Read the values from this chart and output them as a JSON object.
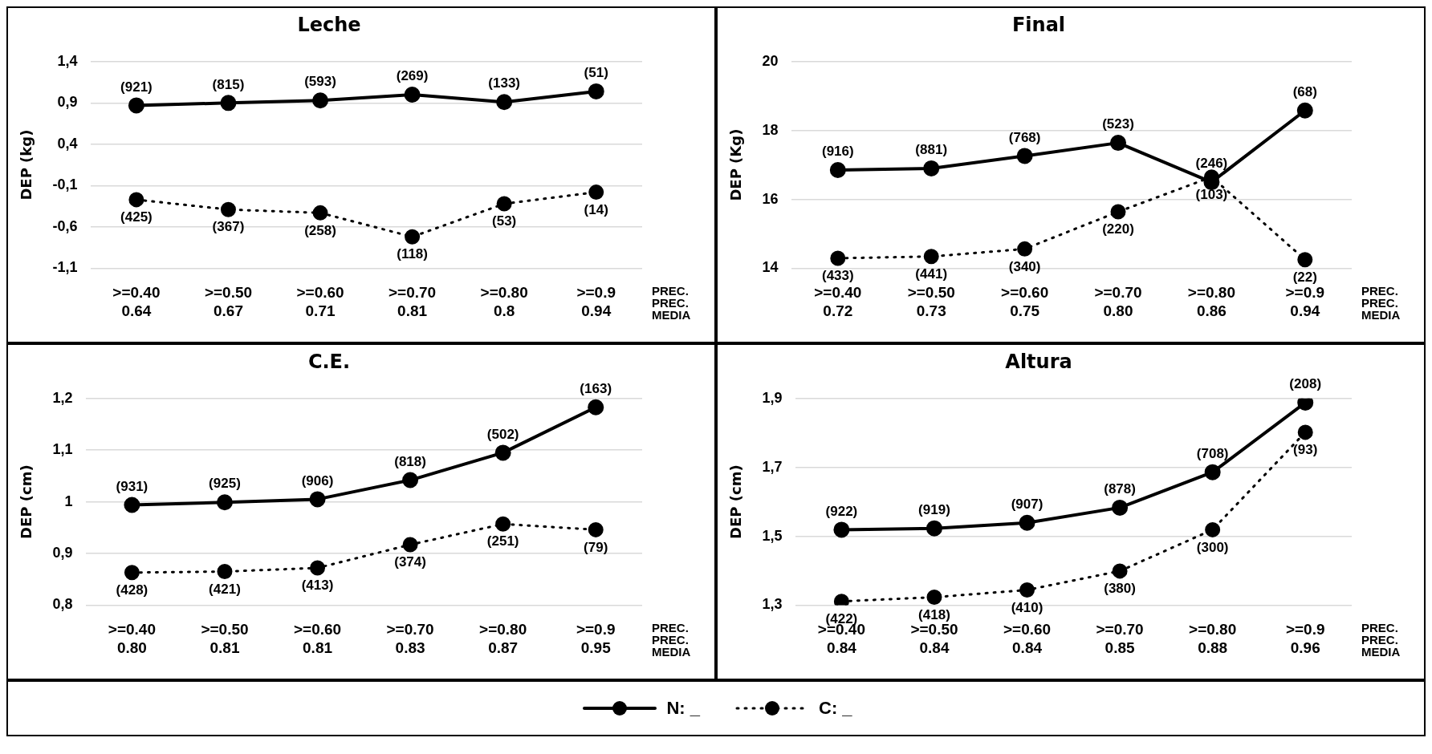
{
  "chart_data": [
    {
      "type": "line",
      "title": "Leche",
      "ylabel": "DEP (kg)",
      "categories": [
        ">=0.40\n0.64",
        ">=0.50\n0.67",
        ">=0.60\n0.71",
        ">=0.70\n0.81",
        ">=0.80\n0.8",
        ">=0.9\n0.94"
      ],
      "series": [
        {
          "name": "N: _",
          "color": "#000000",
          "line_style": "solid",
          "values": [
            0.87,
            0.9,
            0.93,
            1.0,
            0.91,
            1.04
          ]
        },
        {
          "name": "C: _",
          "color": "#000000",
          "line_style": "dotted",
          "values": [
            -0.27,
            -0.39,
            -0.43,
            -0.72,
            -0.32,
            -0.18
          ]
        }
      ],
      "ylim": [
        -1.1,
        1.4
      ],
      "yticks": [
        {
          "value": -1.1,
          "label": "-1,1"
        },
        {
          "value": -0.6,
          "label": "-0,6"
        },
        {
          "value": -0.1,
          "label": "-0,1"
        },
        {
          "value": 0.4,
          "label": "0,4"
        },
        {
          "value": 0.9,
          "label": "0,9"
        },
        {
          "value": 1.4,
          "label": "1,4"
        }
      ],
      "grid": "y",
      "marker": "circle",
      "legend": "bottom",
      "annotations": [
        "PREC.\nPREC.\nMEDIA",
        {
          "text": "(921)",
          "x": ">=0.40\n0.64",
          "y": 0.87
        },
        {
          "text": "(815)",
          "x": ">=0.50\n0.67",
          "y": 0.9
        },
        {
          "text": "(593)",
          "x": ">=0.60\n0.71",
          "y": 0.93
        },
        {
          "text": "(269)",
          "x": ">=0.70\n0.81",
          "y": 1.0
        },
        {
          "text": "(133)",
          "x": ">=0.80\n0.8",
          "y": 0.91
        },
        {
          "text": "(51)",
          "x": ">=0.9\n0.94",
          "y": 1.04
        },
        {
          "text": "(425)",
          "x": ">=0.40\n0.64",
          "y": -0.27
        },
        {
          "text": "(367)",
          "x": ">=0.50\n0.67",
          "y": -0.39
        },
        {
          "text": "(258)",
          "x": ">=0.60\n0.71",
          "y": -0.43
        },
        {
          "text": "(118)",
          "x": ">=0.70\n0.81",
          "y": -0.72
        },
        {
          "text": "(53)",
          "x": ">=0.80\n0.8",
          "y": -0.32
        },
        {
          "text": "(14)",
          "x": ">=0.9\n0.94",
          "y": -0.18
        }
      ]
    },
    {
      "type": "line",
      "title": "Final",
      "ylabel": "DEP (Kg)",
      "categories": [
        ">=0.40\n0.72",
        ">=0.50\n0.73",
        ">=0.60\n0.75",
        ">=0.70\n0.80",
        ">=0.80\n0.86",
        ">=0.9\n0.94"
      ],
      "series": [
        {
          "name": "N: _",
          "color": "#000000",
          "line_style": "solid",
          "values": [
            16.85,
            16.9,
            17.26,
            17.64,
            16.5,
            18.58
          ]
        },
        {
          "name": "C: _",
          "color": "#000000",
          "line_style": "dotted",
          "values": [
            14.29,
            14.34,
            14.56,
            15.64,
            16.65,
            14.25
          ]
        }
      ],
      "ylim": [
        14,
        20
      ],
      "yticks": [
        14,
        16,
        18,
        20
      ],
      "grid": "y",
      "marker": "circle",
      "legend": "bottom",
      "annotations": [
        "PREC.\nPREC.\nMEDIA",
        {
          "text": "(916)",
          "x": ">=0.40\n0.72",
          "y": 16.85
        },
        {
          "text": "(881)",
          "x": ">=0.50\n0.73",
          "y": 16.9
        },
        {
          "text": "(768)",
          "x": ">=0.60\n0.75",
          "y": 17.26
        },
        {
          "text": "(523)",
          "x": ">=0.70\n0.80",
          "y": 17.64
        },
        {
          "text": "(246)",
          "x": ">=0.80\n0.86",
          "y": 16.5
        },
        {
          "text": "(68)",
          "x": ">=0.9\n0.94",
          "y": 18.58
        },
        {
          "text": "(433)",
          "x": ">=0.40\n0.72",
          "y": 14.29
        },
        {
          "text": "(441)",
          "x": ">=0.50\n0.73",
          "y": 14.34
        },
        {
          "text": "(340)",
          "x": ">=0.60\n0.75",
          "y": 14.56
        },
        {
          "text": "(220)",
          "x": ">=0.70\n0.80",
          "y": 15.64
        },
        {
          "text": "(103)",
          "x": ">=0.80\n0.86",
          "y": 16.65
        },
        {
          "text": "(22)",
          "x": ">=0.9\n0.94",
          "y": 14.25
        }
      ]
    },
    {
      "type": "line",
      "title": "C.E.",
      "ylabel": "DEP (cm)",
      "categories": [
        ">=0.40\n0.80",
        ">=0.50\n0.81",
        ">=0.60\n0.81",
        ">=0.70\n0.83",
        ">=0.80\n0.87",
        ">=0.9\n0.95"
      ],
      "series": [
        {
          "name": "N: _",
          "color": "#000000",
          "line_style": "solid",
          "values": [
            0.994,
            0.999,
            1.005,
            1.042,
            1.095,
            1.183
          ]
        },
        {
          "name": "C: _",
          "color": "#000000",
          "line_style": "dotted",
          "values": [
            0.863,
            0.865,
            0.872,
            0.917,
            0.957,
            0.946
          ]
        }
      ],
      "ylim": [
        0.8,
        1.2
      ],
      "yticks": [
        {
          "value": 0.8,
          "label": "0,8"
        },
        {
          "value": 0.9,
          "label": "0,9"
        },
        1,
        {
          "value": 1.1,
          "label": "1,1"
        },
        {
          "value": 1.2,
          "label": "1,2"
        }
      ],
      "grid": "y",
      "marker": "circle",
      "legend": "bottom",
      "annotations": [
        "PREC.\nPREC.\nMEDIA",
        {
          "text": "(931)",
          "x": ">=0.40\n0.80",
          "y": 0.994
        },
        {
          "text": "(925)",
          "x": ">=0.50\n0.81",
          "y": 0.999
        },
        {
          "text": "(906)",
          "x": ">=0.60\n0.81",
          "y": 1.005
        },
        {
          "text": "(818)",
          "x": ">=0.70\n0.83",
          "y": 1.042
        },
        {
          "text": "(502)",
          "x": ">=0.80\n0.87",
          "y": 1.095
        },
        {
          "text": "(163)",
          "x": ">=0.9\n0.95",
          "y": 1.183
        },
        {
          "text": "(428)",
          "x": ">=0.40\n0.80",
          "y": 0.863
        },
        {
          "text": "(421)",
          "x": ">=0.50\n0.81",
          "y": 0.865
        },
        {
          "text": "(413)",
          "x": ">=0.60\n0.81",
          "y": 0.872
        },
        {
          "text": "(374)",
          "x": ">=0.70\n0.83",
          "y": 0.917
        },
        {
          "text": "(251)",
          "x": ">=0.80\n0.87",
          "y": 0.957
        },
        {
          "text": "(79)",
          "x": ">=0.9\n0.95",
          "y": 0.946
        }
      ]
    },
    {
      "type": "line",
      "title": "Altura",
      "ylabel": "DEP (cm)",
      "categories": [
        ">=0.40\n0.84",
        ">=0.50\n0.84",
        ">=0.60\n0.84",
        ">=0.70\n0.85",
        ">=0.80\n0.88",
        ">=0.9\n0.96"
      ],
      "series": [
        {
          "name": "N: _",
          "color": "#000000",
          "line_style": "solid",
          "values": [
            1.519,
            1.523,
            1.539,
            1.583,
            1.686,
            1.888
          ]
        },
        {
          "name": "C: _",
          "color": "#000000",
          "line_style": "dotted",
          "values": [
            1.311,
            1.323,
            1.344,
            1.399,
            1.519,
            1.802
          ]
        }
      ],
      "ylim": [
        1.3,
        1.9
      ],
      "yticks": [
        {
          "value": 1.3,
          "label": "1,3"
        },
        {
          "value": 1.5,
          "label": "1,5"
        },
        {
          "value": 1.7,
          "label": "1,7"
        },
        {
          "value": 1.9,
          "label": "1,9"
        }
      ],
      "grid": "y",
      "marker": "circle",
      "legend": "bottom",
      "annotations": [
        "PREC.\nPREC.\nMEDIA",
        {
          "text": "(922)",
          "x": ">=0.40\n0.84",
          "y": 1.519
        },
        {
          "text": "(919)",
          "x": ">=0.50\n0.84",
          "y": 1.523
        },
        {
          "text": "(907)",
          "x": ">=0.60\n0.84",
          "y": 1.539
        },
        {
          "text": "(878)",
          "x": ">=0.70\n0.85",
          "y": 1.583
        },
        {
          "text": "(708)",
          "x": ">=0.80\n0.88",
          "y": 1.686
        },
        {
          "text": "(208)",
          "x": ">=0.9\n0.96",
          "y": 1.888
        },
        {
          "text": "(422)",
          "x": ">=0.40\n0.84",
          "y": 1.311
        },
        {
          "text": "(418)",
          "x": ">=0.50\n0.84",
          "y": 1.323
        },
        {
          "text": "(410)",
          "x": ">=0.60\n0.84",
          "y": 1.344
        },
        {
          "text": "(380)",
          "x": ">=0.70\n0.85",
          "y": 1.399
        },
        {
          "text": "(300)",
          "x": ">=0.80\n0.88",
          "y": 1.519
        },
        {
          "text": "(93)",
          "x": ">=0.9\n0.96",
          "y": 1.802
        }
      ]
    }
  ]
}
